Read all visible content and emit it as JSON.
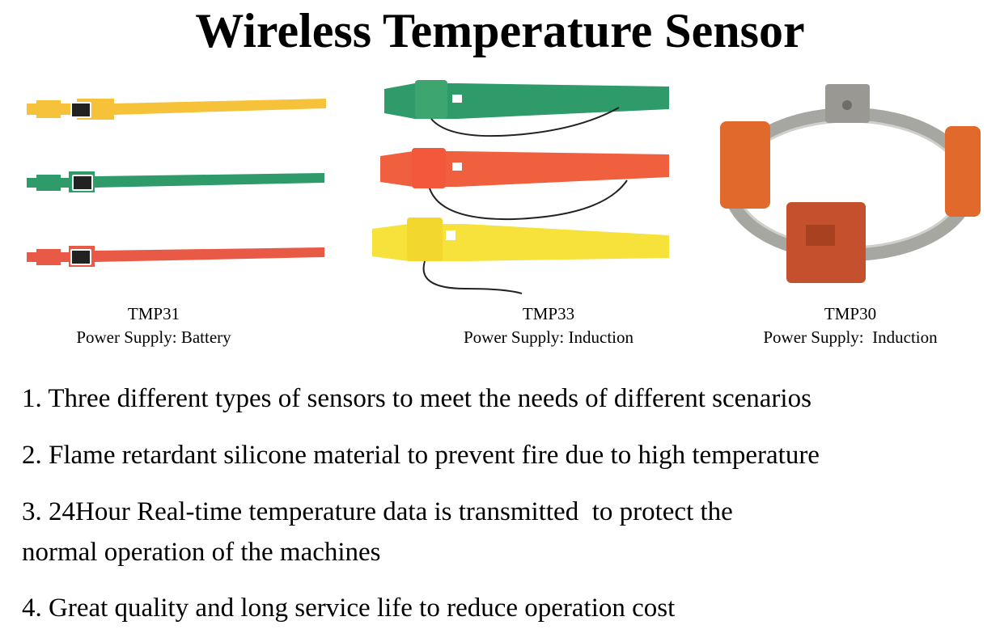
{
  "title": "Wireless Temperature Sensor",
  "products": [
    {
      "model": "TMP31",
      "power": "Power Supply: Battery"
    },
    {
      "model": "TMP33",
      "power": "Power Supply: Induction"
    },
    {
      "model": "TMP30",
      "power": "Power Supply:  Induction"
    }
  ],
  "features": [
    "1. Three different types of sensors to meet the needs of different scenarios",
    "2. Flame retardant silicone material to prevent fire due to high temperature",
    "3. 24Hour Real-time temperature data is transmitted  to protect the",
    "normal operation of the machines",
    "4. Great quality and long service life to reduce operation cost"
  ],
  "colors": {
    "yellow": "#f5c23a",
    "green": "#2f9a6a",
    "red": "#e85a45",
    "orange": "#e0692b",
    "brick": "#c4502e",
    "steel": "#a7a7a2"
  }
}
